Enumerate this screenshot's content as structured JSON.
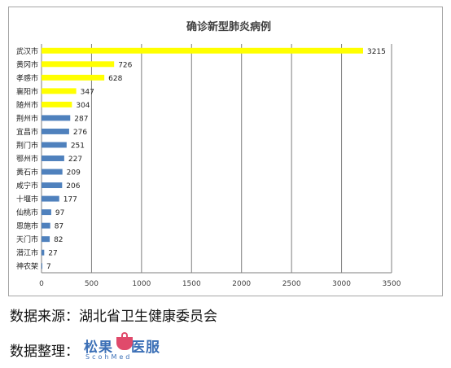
{
  "chart_data": {
    "type": "bar",
    "orientation": "horizontal",
    "title": "确诊新型肺炎病例",
    "categories": [
      "武汉市",
      "黄冈市",
      "孝感市",
      "襄阳市",
      "随州市",
      "荆州市",
      "宜昌市",
      "荆门市",
      "鄂州市",
      "黄石市",
      "咸宁市",
      "十堰市",
      "仙桃市",
      "恩施市",
      "天门市",
      "潜江市",
      "神农架"
    ],
    "values": [
      3215,
      726,
      628,
      347,
      304,
      287,
      276,
      251,
      227,
      209,
      206,
      177,
      97,
      87,
      82,
      27,
      7
    ],
    "highlight_count": 5,
    "colors": {
      "highlight": "#ffff00",
      "normal": "#4f81bd",
      "grid": "#7f7f7f"
    },
    "xlim": [
      0,
      3500
    ],
    "xticks": [
      0,
      500,
      1000,
      1500,
      2000,
      2500,
      3000,
      3500
    ],
    "grid": true,
    "legend": "none"
  },
  "footer": {
    "source": "数据来源：湖北省卫生健康委员会",
    "compiled_label": "数据整理：",
    "logo_text": "松果",
    "logo_text_2": "医服",
    "logo_sub": "ScohMed"
  }
}
